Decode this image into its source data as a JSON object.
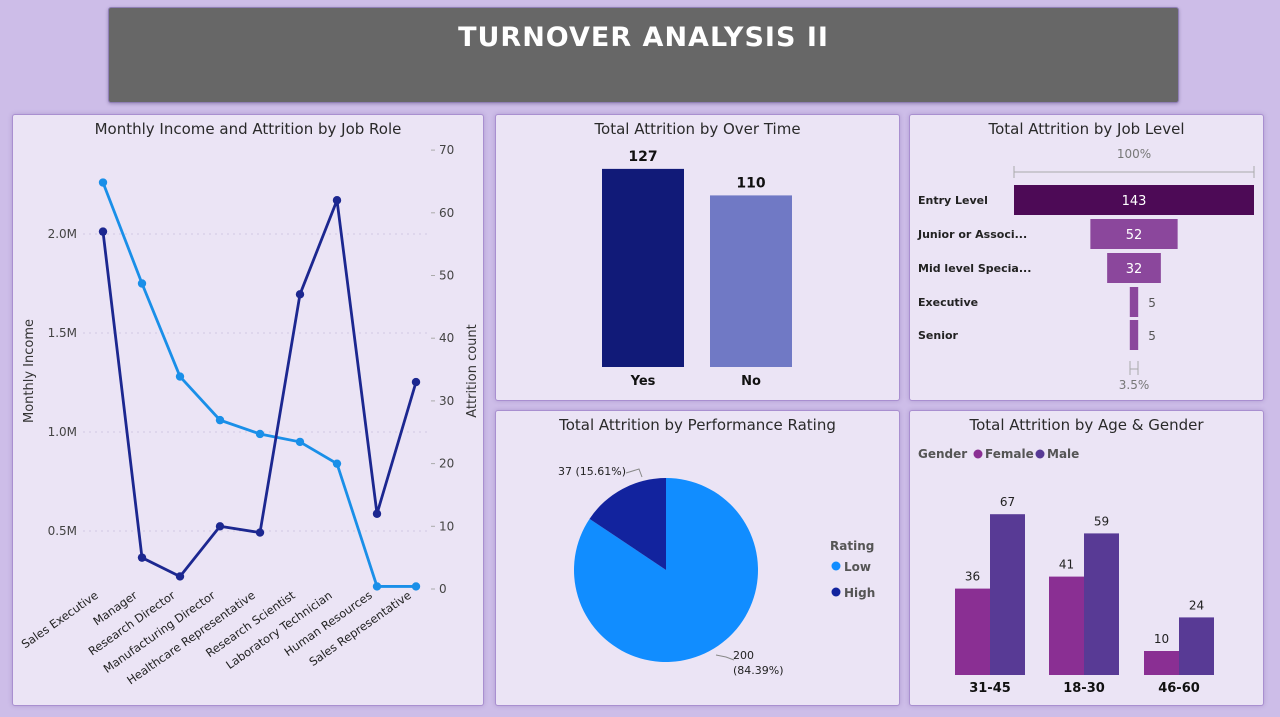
{
  "banner": {
    "title": "TURNOVER ANALYSIS II"
  },
  "colors": {
    "income_line": "#1a8fe8",
    "attrition_line": "#1c2790",
    "yes_bar": "#111a78",
    "no_bar": "#7079c5",
    "entry_level": "#4d0a56",
    "other_levels": "#8b479c",
    "female": "#8a2f93",
    "male": "#583a95",
    "pie_low": "#118dff",
    "pie_high": "#12239e"
  },
  "chart_data": [
    {
      "id": "income-attrition",
      "type": "line",
      "title": "Monthly Income and Attrition by Job Role",
      "ylabel": "Monthly Income",
      "y2label": "Attrition count",
      "categories": [
        "Sales Executive",
        "Manager",
        "Research Director",
        "Manufacturing Director",
        "Healthcare Representative",
        "Research Scientist",
        "Laboratory Technician",
        "Human Resources",
        "Sales Representative"
      ],
      "y_ticks": [
        "0.5M",
        "1.0M",
        "1.5M",
        "2.0M"
      ],
      "y_tick_values": [
        0.5,
        1.0,
        1.5,
        2.0
      ],
      "y2_ticks": [
        "0",
        "10",
        "20",
        "30",
        "40",
        "50",
        "60",
        "70"
      ],
      "y2_tick_values": [
        0,
        10,
        20,
        30,
        40,
        50,
        60,
        70
      ],
      "series": [
        {
          "name": "Monthly Income",
          "axis": "left",
          "values": [
            2.26,
            1.75,
            1.28,
            1.06,
            0.99,
            0.95,
            0.84,
            0.22,
            0.22
          ]
        },
        {
          "name": "Attrition count",
          "axis": "right",
          "values": [
            57,
            5,
            2,
            10,
            9,
            47,
            62,
            12,
            33
          ]
        }
      ]
    },
    {
      "id": "overtime",
      "type": "bar",
      "title": "Total Attrition by Over Time",
      "categories": [
        "Yes",
        "No"
      ],
      "values": [
        127,
        110
      ]
    },
    {
      "id": "job-level",
      "type": "bar",
      "title": "Total Attrition by Job Level",
      "top_label": "100%",
      "bottom_label": "3.5%",
      "categories": [
        "Entry Level",
        "Junior or Associ...",
        "Mid level Specia...",
        "Executive",
        "Senior"
      ],
      "values": [
        143,
        52,
        32,
        5,
        5
      ]
    },
    {
      "id": "performance",
      "type": "pie",
      "title": "Total Attrition by Performance Rating",
      "legend_title": "Rating",
      "slices": [
        {
          "name": "Low",
          "value": 200,
          "label": "200",
          "pct": "(84.39%)"
        },
        {
          "name": "High",
          "value": 37,
          "label": "37 (15.61%)",
          "pct": ""
        }
      ]
    },
    {
      "id": "age-gender",
      "type": "bar",
      "title": "Total Attrition by Age & Gender",
      "legend_title": "Gender",
      "categories": [
        "31-45",
        "18-30",
        "46-60"
      ],
      "series": [
        {
          "name": "Female",
          "values": [
            36,
            41,
            10
          ]
        },
        {
          "name": "Male",
          "values": [
            67,
            59,
            24
          ]
        }
      ]
    }
  ]
}
